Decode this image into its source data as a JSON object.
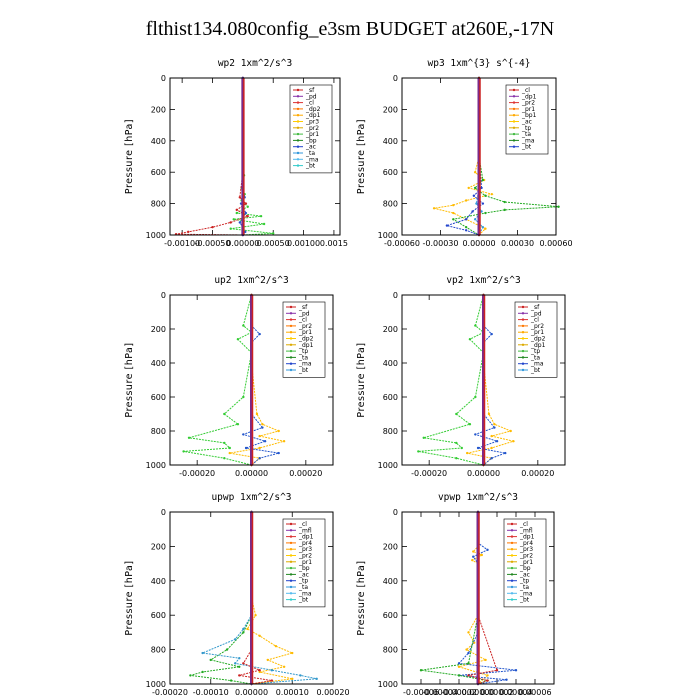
{
  "figure": {
    "title": "flthist134.080config_e3sm  BUDGET at260E,-17N"
  },
  "chart_data": [
    {
      "type": "line",
      "title": "wp2   1xm^2/s^3",
      "ylabel": "Pressure [hPa]",
      "ylim": [
        1000,
        0
      ],
      "xlim": [
        -0.0012,
        0.0016
      ],
      "xtick_values": [
        -0.001,
        -0.0005,
        0,
        0.0005,
        0.001,
        0.0015
      ],
      "xtick_labels": [
        "-0.00100",
        "-0.00050",
        "0.00000",
        "0.00050",
        "0.00100",
        "0.0015"
      ],
      "ytick_labels": [
        "0",
        "200",
        "400",
        "600",
        "800",
        "1000"
      ],
      "legend": [
        "_sf",
        "_pd",
        "_cl",
        "_dp2",
        "_dp1",
        "_pr3",
        "_pr2",
        "_pr1",
        "_bp",
        "_ac",
        "_ta",
        "_ma",
        "_bt"
      ],
      "series": [
        {
          "name": "_pr1",
          "color": "#33cc33",
          "x": [
            0,
            0,
            0,
            2e-05,
            0,
            -2e-05,
            3e-05,
            -2e-05,
            8e-05,
            -0.0001,
            0.0003,
            -0.00015,
            0.00035,
            -0.0002,
            0.0005,
            0
          ],
          "y": [
            0,
            200,
            400,
            620,
            660,
            700,
            740,
            780,
            820,
            860,
            880,
            900,
            930,
            960,
            990,
            1000
          ]
        },
        {
          "name": "_dp1",
          "color": "#cc2222",
          "x": [
            0,
            0,
            0,
            0,
            -5e-05,
            5e-05,
            -0.0001,
            8e-05,
            -0.0002,
            -0.0005,
            -0.0009,
            -0.0011,
            0
          ],
          "y": [
            0,
            200,
            400,
            600,
            760,
            800,
            840,
            880,
            920,
            950,
            980,
            995,
            1000
          ]
        },
        {
          "name": "_ac",
          "color": "#2255cc",
          "x": [
            0,
            0,
            0,
            0,
            3e-05,
            -3e-05,
            5e-05,
            -5e-05,
            4e-05,
            0
          ],
          "y": [
            0,
            200,
            400,
            700,
            760,
            800,
            860,
            920,
            980,
            1000
          ]
        },
        {
          "name": "_bt",
          "color": "#6633aa",
          "x": [
            0,
            0,
            0,
            0,
            0,
            0
          ],
          "y": [
            0,
            200,
            400,
            600,
            800,
            1000
          ]
        }
      ]
    },
    {
      "type": "line",
      "title": "wp3   1xm^{3} s^{-4}",
      "ylabel": "Pressure [hPa]",
      "ylim": [
        1000,
        0
      ],
      "xlim": [
        -0.0006,
        0.0006
      ],
      "xtick_values": [
        -0.0006,
        -0.0003,
        0,
        0.0003,
        0.0006
      ],
      "xtick_labels": [
        "-0.00060",
        "-0.00030",
        "0.00000",
        "0.00030",
        "0.00060"
      ],
      "ytick_labels": [
        "0",
        "200",
        "400",
        "600",
        "800",
        "1000"
      ],
      "legend": [
        "_cl",
        "_dp1",
        "_pr2",
        "_pr1",
        "_bp1",
        "_ac",
        "_tp",
        "_ta",
        "_ma",
        "_bt"
      ],
      "series": [
        {
          "name": "_pr2",
          "color": "#ffbb00",
          "x": [
            0,
            0,
            0,
            -3e-05,
            4e-05,
            -8e-05,
            0.0001,
            -0.0001,
            -0.0002,
            -0.00035,
            -0.0002,
            -0.0001,
            5e-05,
            0
          ],
          "y": [
            0,
            200,
            500,
            600,
            650,
            700,
            740,
            780,
            810,
            830,
            860,
            900,
            960,
            1000
          ]
        },
        {
          "name": "_bp1",
          "color": "#22aa22",
          "x": [
            0,
            0,
            0,
            3e-05,
            -3e-05,
            5e-05,
            0.0002,
            0.00062,
            0.0002,
            5e-05,
            -0.0002,
            -0.0001,
            0
          ],
          "y": [
            0,
            200,
            500,
            650,
            700,
            750,
            790,
            820,
            840,
            860,
            900,
            950,
            1000
          ]
        },
        {
          "name": "_tp",
          "color": "#2244cc",
          "x": [
            0,
            0,
            0,
            2e-05,
            -4e-05,
            3e-05,
            -5e-05,
            -0.0001,
            -0.00025,
            -0.0001,
            0
          ],
          "y": [
            0,
            200,
            500,
            700,
            750,
            800,
            850,
            900,
            940,
            970,
            1000
          ]
        },
        {
          "name": "_ta",
          "color": "#3399dd",
          "x": [
            0,
            0,
            0,
            0,
            -2e-05,
            2e-05,
            -3e-05,
            3e-05,
            0
          ],
          "y": [
            0,
            200,
            500,
            700,
            800,
            850,
            900,
            950,
            1000
          ]
        },
        {
          "name": "_cl",
          "color": "#cc2222",
          "x": [
            0,
            0,
            0,
            0,
            0,
            0
          ],
          "y": [
            0,
            200,
            400,
            600,
            800,
            1000
          ]
        }
      ]
    },
    {
      "type": "line",
      "title": "up2   1xm^2/s^3",
      "ylabel": "Pressure [hPa]",
      "ylim": [
        1000,
        0
      ],
      "xlim": [
        -0.0003,
        0.0003
      ],
      "xtick_values": [
        -0.0002,
        0,
        0.0002
      ],
      "xtick_labels": [
        "-0.00020",
        "0.00000",
        "0.00020"
      ],
      "ytick_labels": [
        "0",
        "200",
        "400",
        "600",
        "800",
        "1000"
      ],
      "legend": [
        "_sf",
        "_pd",
        "_cl",
        "_pr2",
        "_pr1",
        "_dp2",
        "_dp1",
        "_tp",
        "_ta",
        "_ma",
        "_bt"
      ],
      "series": [
        {
          "name": "_dp2",
          "color": "#33cc33",
          "x": [
            0,
            -3e-05,
            0,
            -5e-05,
            0,
            -3e-05,
            -0.0001,
            -5e-05,
            -0.00023,
            -0.0001,
            -8e-05,
            -0.00025,
            -0.0001,
            0
          ],
          "y": [
            0,
            180,
            220,
            260,
            340,
            600,
            700,
            760,
            840,
            870,
            900,
            920,
            960,
            1000
          ]
        },
        {
          "name": "_pr1",
          "color": "#ffbb00",
          "x": [
            0,
            0,
            0,
            2e-05,
            4e-05,
            0.0001,
            3e-05,
            0.00012,
            3e-05,
            -8e-05,
            3e-05,
            0
          ],
          "y": [
            0,
            200,
            400,
            700,
            760,
            800,
            830,
            860,
            900,
            930,
            960,
            1000
          ]
        },
        {
          "name": "_tp",
          "color": "#2255cc",
          "x": [
            0,
            0,
            3e-05,
            0,
            0,
            4e-05,
            -3e-05,
            5e-05,
            -2e-05,
            0.0001,
            3e-05,
            0
          ],
          "y": [
            0,
            180,
            230,
            280,
            700,
            780,
            820,
            860,
            900,
            930,
            960,
            1000
          ]
        },
        {
          "name": "_cl",
          "color": "#cc2222",
          "x": [
            0,
            0,
            0,
            0,
            0,
            0
          ],
          "y": [
            0,
            200,
            400,
            600,
            800,
            1000
          ]
        }
      ]
    },
    {
      "type": "line",
      "title": "vp2   1xm^2/s^3",
      "ylabel": "Pressure [hPa]",
      "ylim": [
        1000,
        0
      ],
      "xlim": [
        -0.0003,
        0.0003
      ],
      "xtick_values": [
        -0.0002,
        0,
        0.0002
      ],
      "xtick_labels": [
        "-0.00020",
        "0.00000",
        "0.00020"
      ],
      "ytick_labels": [
        "0",
        "200",
        "400",
        "600",
        "800",
        "1000"
      ],
      "legend": [
        "_sf",
        "_pd",
        "_cl",
        "_pr2",
        "_pr1",
        "_dp2",
        "_dp1",
        "_tp",
        "_ta",
        "_ma",
        "_bt"
      ],
      "series": [
        {
          "name": "_dp2",
          "color": "#33cc33",
          "x": [
            0,
            -3e-05,
            0,
            -5e-05,
            0,
            -3e-05,
            -0.0001,
            -5e-05,
            -0.00022,
            -0.0001,
            -8e-05,
            -0.00024,
            -0.0001,
            0
          ],
          "y": [
            0,
            180,
            220,
            260,
            340,
            600,
            700,
            760,
            840,
            870,
            900,
            920,
            960,
            1000
          ]
        },
        {
          "name": "_pr1",
          "color": "#ffbb00",
          "x": [
            0,
            0,
            0,
            2e-05,
            4e-05,
            0.0001,
            3e-05,
            0.00011,
            3e-05,
            -6e-05,
            3e-05,
            0
          ],
          "y": [
            0,
            200,
            400,
            700,
            760,
            800,
            830,
            860,
            900,
            930,
            960,
            1000
          ]
        },
        {
          "name": "_tp",
          "color": "#2255cc",
          "x": [
            0,
            0,
            3e-05,
            0,
            0,
            4e-05,
            -3e-05,
            5e-05,
            -2e-05,
            8e-05,
            3e-05,
            0
          ],
          "y": [
            0,
            180,
            230,
            280,
            700,
            780,
            820,
            860,
            900,
            930,
            960,
            1000
          ]
        },
        {
          "name": "_cl",
          "color": "#cc2222",
          "x": [
            0,
            0,
            0,
            0,
            0,
            0
          ],
          "y": [
            0,
            200,
            400,
            600,
            800,
            1000
          ]
        }
      ]
    },
    {
      "type": "line",
      "title": "upwp   1xm^2/s^3",
      "ylabel": "Pressure [hPa]",
      "ylim": [
        1000,
        0
      ],
      "xlim": [
        -0.0002,
        0.0002
      ],
      "xtick_values": [
        -0.0002,
        -0.0001,
        0,
        0.0001,
        0.0002
      ],
      "xtick_labels": [
        "-0.00020",
        "-0.00010",
        "0.00000",
        "0.00010",
        "0.00020"
      ],
      "ytick_labels": [
        "0",
        "200",
        "400",
        "600",
        "800",
        "1000"
      ],
      "legend": [
        "_cl",
        "_mfl",
        "_dp1",
        "_pr4",
        "_pr3",
        "_pr2",
        "_pr1",
        "_bp",
        "_ac",
        "_tp",
        "_ta",
        "_ma",
        "_bt"
      ],
      "series": [
        {
          "name": "_pr1",
          "color": "#ffbb00",
          "x": [
            0,
            0,
            0,
            1e-05,
            -1e-05,
            2e-05,
            6e-05,
            0.0001,
            4e-05,
            8e-05,
            2e-05,
            0.0001,
            0
          ],
          "y": [
            0,
            200,
            500,
            600,
            680,
            720,
            780,
            820,
            860,
            900,
            930,
            970,
            1000
          ]
        },
        {
          "name": "_bp",
          "color": "#22aa22",
          "x": [
            0,
            0,
            0,
            -2e-05,
            -6e-05,
            -0.0001,
            -3e-05,
            -0.00012,
            -0.00015,
            -5e-05,
            0
          ],
          "y": [
            0,
            200,
            600,
            700,
            800,
            860,
            900,
            930,
            950,
            980,
            1000
          ]
        },
        {
          "name": "_tp",
          "color": "#3399cc",
          "x": [
            0,
            0,
            0,
            -2e-05,
            -4e-05,
            -0.00012,
            -3e-05,
            -4e-05,
            5e-05,
            0.00012,
            0.00016,
            0
          ],
          "y": [
            0,
            200,
            600,
            680,
            740,
            820,
            850,
            880,
            920,
            950,
            970,
            1000
          ]
        },
        {
          "name": "_dp1",
          "color": "#cc2222",
          "x": [
            0,
            0,
            0,
            0,
            -2e-05,
            2e-05,
            -3e-05,
            5e-05,
            0
          ],
          "y": [
            0,
            200,
            600,
            800,
            880,
            920,
            950,
            980,
            1000
          ]
        },
        {
          "name": "_cl",
          "color": "#7733aa",
          "x": [
            0,
            0,
            0,
            0,
            0,
            0
          ],
          "y": [
            0,
            200,
            400,
            600,
            800,
            1000
          ]
        }
      ]
    },
    {
      "type": "line",
      "title": "vpwp   1xm^2/s^3",
      "ylabel": "Pressure [hPa]",
      "ylim": [
        1000,
        0
      ],
      "xlim": [
        -8e-05,
        8e-05
      ],
      "xtick_values": [
        -6e-05,
        -4e-05,
        -2e-05,
        0,
        2e-05,
        4e-05,
        6e-05
      ],
      "xtick_labels": [
        "-0.00006",
        "-0.00004",
        "-0.00002",
        "0.00000",
        "0.00002",
        "0.00004",
        "0.00006"
      ],
      "ytick_labels": [
        "0",
        "200",
        "400",
        "600",
        "800",
        "1000"
      ],
      "legend": [
        "_cl",
        "_mfl",
        "_dp1",
        "_pr4",
        "_pr3",
        "_pr2",
        "_pr1",
        "_bp",
        "_ac",
        "_tp",
        "_ta",
        "_ma",
        "_bt"
      ],
      "series": [
        {
          "name": "_pr2",
          "color": "#ffbb00",
          "x": [
            0,
            0,
            -5e-06,
            4e-06,
            -6e-06,
            0,
            0,
            -1e-05,
            -4e-06,
            -1.2e-05,
            8e-06,
            -2e-05,
            1e-05,
            0
          ],
          "y": [
            0,
            200,
            230,
            250,
            280,
            300,
            600,
            700,
            760,
            800,
            860,
            900,
            950,
            1000
          ]
        },
        {
          "name": "_tp",
          "color": "#2255cc",
          "x": [
            0,
            0,
            1e-05,
            -5e-06,
            0,
            0,
            -1e-05,
            -2e-05,
            4e-05,
            -2e-05,
            3e-05,
            0
          ],
          "y": [
            0,
            180,
            220,
            260,
            300,
            700,
            820,
            880,
            920,
            950,
            975,
            1000
          ]
        },
        {
          "name": "_bp",
          "color": "#22aa22",
          "x": [
            0,
            0,
            0,
            -1e-05,
            -6e-05,
            -2e-05,
            1e-05,
            0
          ],
          "y": [
            0,
            200,
            600,
            880,
            920,
            950,
            980,
            1000
          ]
        },
        {
          "name": "_dp1",
          "color": "#cc2222",
          "x": [
            0,
            0,
            0,
            2e-05,
            -1e-05,
            1e-05,
            0
          ],
          "y": [
            0,
            200,
            600,
            920,
            950,
            980,
            1000
          ]
        },
        {
          "name": "_cl",
          "color": "#7733aa",
          "x": [
            0,
            0,
            0,
            0,
            0,
            0
          ],
          "y": [
            0,
            200,
            400,
            600,
            800,
            1000
          ]
        }
      ]
    }
  ]
}
